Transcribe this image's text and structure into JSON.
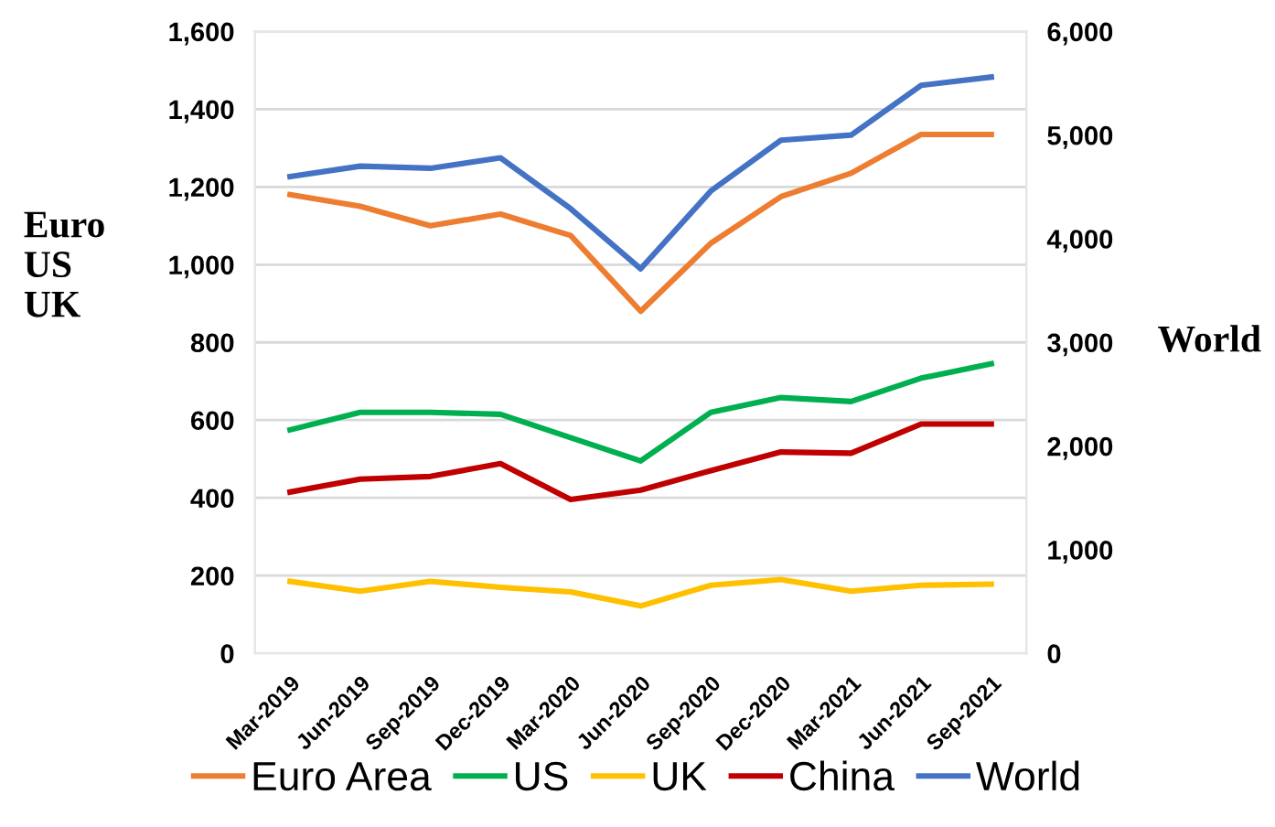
{
  "chart_data": {
    "type": "line",
    "categories": [
      "Mar-2019",
      "Jun-2019",
      "Sep-2019",
      "Dec-2019",
      "Mar-2020",
      "Jun-2020",
      "Sep-2020",
      "Dec-2020",
      "Mar-2021",
      "Jun-2021",
      "Sep-2021"
    ],
    "series": [
      {
        "name": "Euro Area",
        "color": "#ed7d31",
        "values": [
          1180,
          1150,
          1100,
          1130,
          1075,
          880,
          1055,
          1175,
          1235,
          1335,
          1335
        ]
      },
      {
        "name": "US",
        "color": "#00b050",
        "values": [
          575,
          620,
          620,
          615,
          555,
          495,
          620,
          658,
          648,
          708,
          745
        ]
      },
      {
        "name": "UK",
        "color": "#ffc000",
        "values": [
          185,
          160,
          185,
          170,
          158,
          122,
          175,
          190,
          160,
          175,
          178
        ]
      },
      {
        "name": "China",
        "color": "#c00000",
        "values": [
          415,
          448,
          455,
          488,
          396,
          420,
          470,
          518,
          515,
          590,
          590
        ]
      },
      {
        "name": "World",
        "color": "#4472c4",
        "axis": "y2",
        "values": [
          4600,
          4700,
          4680,
          4780,
          4290,
          3710,
          4460,
          4950,
          5000,
          5480,
          5560
        ]
      }
    ],
    "ylabel": "Euro\nUS\nUK",
    "y2label": "World",
    "ylim": [
      0,
      1600
    ],
    "yticks": [
      {
        "value": 0,
        "label": "0"
      },
      {
        "value": 200,
        "label": "200"
      },
      {
        "value": 400,
        "label": "400"
      },
      {
        "value": 600,
        "label": "600"
      },
      {
        "value": 800,
        "label": "800"
      },
      {
        "value": 1000,
        "label": "1,000"
      },
      {
        "value": 1200,
        "label": "1,200"
      },
      {
        "value": 1400,
        "label": "1,400"
      },
      {
        "value": 1600,
        "label": "1,600"
      }
    ],
    "y2lim": [
      0,
      6000
    ],
    "y2ticks": [
      {
        "value": 0,
        "label": "0"
      },
      {
        "value": 1000,
        "label": "1,000"
      },
      {
        "value": 2000,
        "label": "2,000"
      },
      {
        "value": 3000,
        "label": "3,000"
      },
      {
        "value": 4000,
        "label": "4,000"
      },
      {
        "value": 5000,
        "label": "5,000"
      },
      {
        "value": 6000,
        "label": "6,000"
      }
    ],
    "grid": "y",
    "legend": "bottom",
    "marker": "none",
    "line_style": "solid"
  }
}
